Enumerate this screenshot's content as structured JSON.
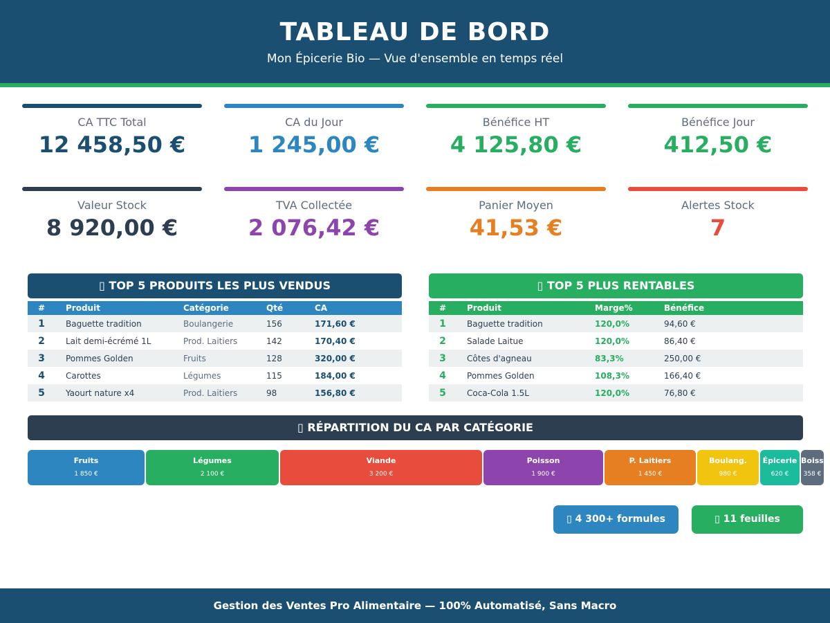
{
  "header": {
    "title": "TABLEAU DE BORD",
    "subtitle": "Mon Épicerie Bio — Vue d'ensemble en temps réel"
  },
  "kpis": [
    {
      "label": "CA TTC Total",
      "value": "12 458,50 €",
      "color": "#1b4f72"
    },
    {
      "label": "CA du Jour",
      "value": "1 245,00 €",
      "color": "#2e86c1"
    },
    {
      "label": "Bénéfice HT",
      "value": "4 125,80 €",
      "color": "#27ae60"
    },
    {
      "label": "Bénéfice Jour",
      "value": "412,50 €",
      "color": "#27ae60"
    },
    {
      "label": "Valeur Stock",
      "value": "8 920,00 €",
      "color": "#2c3e50"
    },
    {
      "label": "TVA Collectée",
      "value": "2 076,42 €",
      "color": "#8e44ad"
    },
    {
      "label": "Panier Moyen",
      "value": "41,53 €",
      "color": "#e67e22"
    },
    {
      "label": "Alertes Stock",
      "value": "7",
      "color": "#e74c3c"
    }
  ],
  "top_sold": {
    "icon": "▯",
    "title": "TOP 5 PRODUITS LES PLUS VENDUS",
    "columns": [
      "#",
      "Produit",
      "Catégorie",
      "Qté",
      "CA"
    ],
    "rows": [
      [
        "1",
        "Baguette tradition",
        "Boulangerie",
        "156",
        "171,60 €"
      ],
      [
        "2",
        "Lait demi-écrémé 1L",
        "Prod. Laitiers",
        "142",
        "170,40 €"
      ],
      [
        "3",
        "Pommes Golden",
        "Fruits",
        "128",
        "320,00 €"
      ],
      [
        "4",
        "Carottes",
        "Légumes",
        "115",
        "184,00 €"
      ],
      [
        "5",
        "Yaourt nature x4",
        "Prod. Laitiers",
        "98",
        "156,80 €"
      ]
    ]
  },
  "top_profit": {
    "icon": "▯",
    "title": "TOP 5 PLUS RENTABLES",
    "columns": [
      "#",
      "Produit",
      "Marge%",
      "Bénéfice"
    ],
    "rows": [
      [
        "1",
        "Baguette tradition",
        "120,0%",
        "94,60 €"
      ],
      [
        "2",
        "Salade Laitue",
        "120,0%",
        "86,40 €"
      ],
      [
        "3",
        "Côtes d'agneau",
        "83,3%",
        "250,00 €"
      ],
      [
        "4",
        "Pommes Golden",
        "108,3%",
        "166,40 €"
      ],
      [
        "5",
        "Coca-Cola 1.5L",
        "120,0%",
        "76,80 €"
      ]
    ]
  },
  "categories": {
    "icon": "▯",
    "title": "RÉPARTITION DU CA PAR CATÉGORIE",
    "items": [
      {
        "name": "Fruits",
        "label": "1 850 €",
        "value": 1850,
        "color": "#2e86c1"
      },
      {
        "name": "Légumes",
        "label": "2 100 €",
        "value": 2100,
        "color": "#27ae60"
      },
      {
        "name": "Viande",
        "label": "3 200 €",
        "value": 3200,
        "color": "#e74c3c"
      },
      {
        "name": "Poisson",
        "label": "1 900 €",
        "value": 1900,
        "color": "#8e44ad"
      },
      {
        "name": "P. Laitiers",
        "label": "1 450 €",
        "value": 1450,
        "color": "#e67e22"
      },
      {
        "name": "Boulang.",
        "label": "980 €",
        "value": 980,
        "color": "#f1c40f"
      },
      {
        "name": "Épicerie",
        "label": "620 €",
        "value": 620,
        "color": "#1abc9c"
      },
      {
        "name": "Boisson",
        "label": "358 €",
        "value": 358,
        "color": "#5d6d7e"
      }
    ]
  },
  "badges": [
    {
      "icon": "▯",
      "label": "4 300+ formules"
    },
    {
      "icon": "▯",
      "label": "11 feuilles"
    }
  ],
  "footer": "Gestion des Ventes Pro Alimentaire — 100% Automatisé, Sans Macro"
}
